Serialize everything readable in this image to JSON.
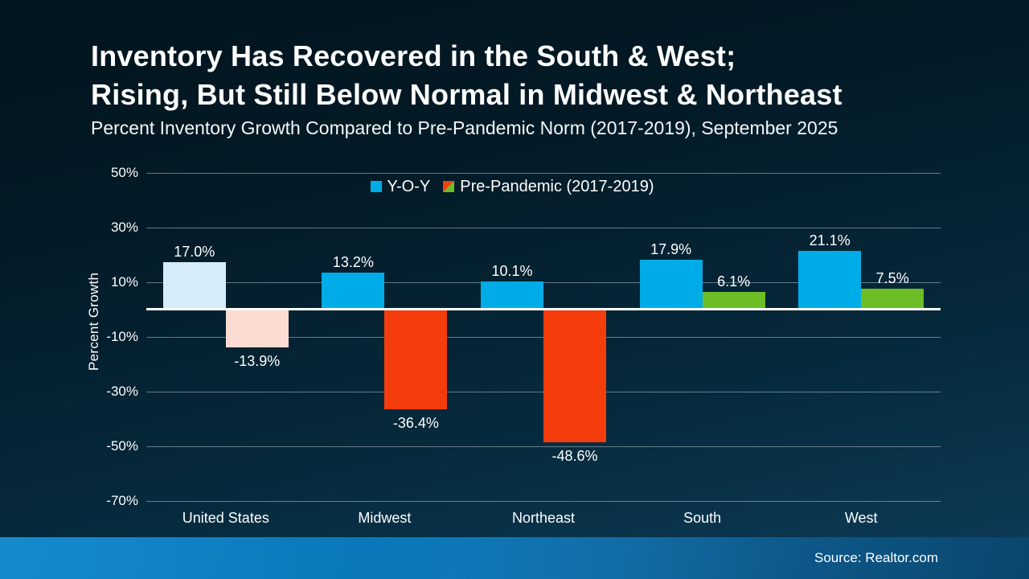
{
  "header": {
    "title_line1": "Inventory Has Recovered in the South & West;",
    "title_line2": "Rising, But Still Below Normal in Midwest & Northeast",
    "subtitle": "Percent Inventory Growth Compared to Pre-Pandemic Norm (2017-2019), September 2025"
  },
  "chart_data": {
    "type": "bar",
    "title": "Inventory Has Recovered in the South & West; Rising, But Still Below Normal in Midwest & Northeast",
    "subtitle": "Percent Inventory Growth Compared to Pre-Pandemic Norm (2017-2019), September 2025",
    "categories": [
      "United States",
      "Midwest",
      "Northeast",
      "South",
      "West"
    ],
    "series": [
      {
        "name": "Y-O-Y",
        "values": [
          17.0,
          13.2,
          10.1,
          17.9,
          21.1
        ],
        "labels": [
          "17.0%",
          "13.2%",
          "10.1%",
          "17.9%",
          "21.1%"
        ],
        "bar_colors": [
          "#d6ecfa",
          "#00ace8",
          "#00ace8",
          "#00ace8",
          "#00ace8"
        ],
        "legend_swatch": {
          "type": "solid",
          "color": "#00ace8"
        }
      },
      {
        "name": "Pre-Pandemic (2017-2019)",
        "values": [
          -13.9,
          -36.4,
          -48.6,
          6.1,
          7.5
        ],
        "labels": [
          "-13.9%",
          "-36.4%",
          "-48.6%",
          "6.1%",
          "7.5%"
        ],
        "bar_colors": [
          "#fcdcd2",
          "#f53c0d",
          "#f53c0d",
          "#6cbe27",
          "#6cbe27"
        ],
        "legend_swatch": {
          "type": "diagonal-split",
          "top_left_color": "#f5400e",
          "bottom_right_color": "#6cbe27"
        }
      }
    ],
    "ylabel": "Percent Growth",
    "xlabel": "",
    "yticks": [
      50,
      30,
      10,
      -10,
      -30,
      -50,
      -70
    ],
    "ytick_labels": [
      "50%",
      "30%",
      "10%",
      "-10%",
      "-30%",
      "-50%",
      "-70%"
    ],
    "ylim": [
      -70,
      50
    ],
    "grid": true,
    "legend_position": "top-center",
    "zero_line_color": "#ffffff",
    "value_label_color": "#ffffff"
  },
  "footer": {
    "source": "Source: Realtor.com",
    "gradient_left": "#0b84cc",
    "gradient_right": "#0a4a72"
  },
  "colors": {
    "background_top": "#02141d",
    "background_bottom": "#0c3d59",
    "gridline": "#aab8c0",
    "text": "#ffffff"
  }
}
